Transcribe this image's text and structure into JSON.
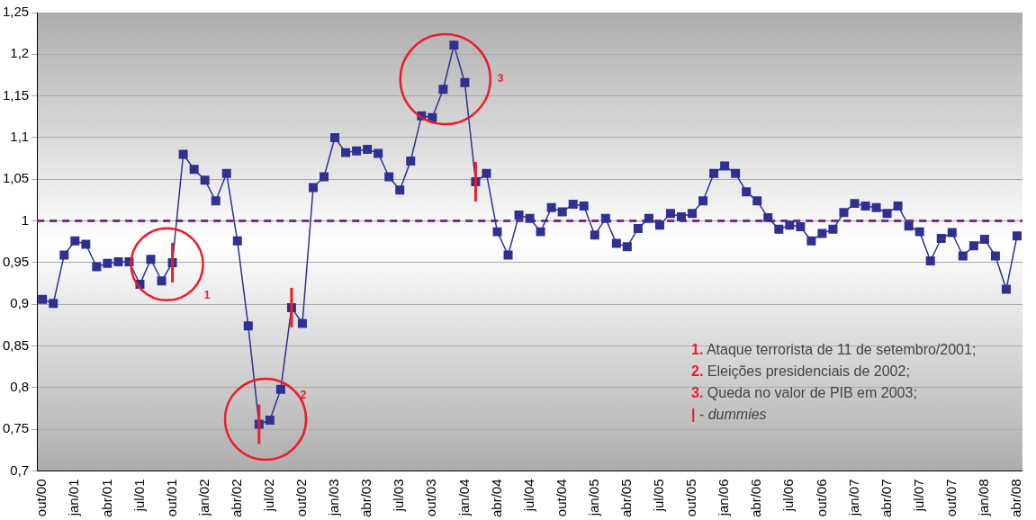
{
  "chart_data": {
    "type": "line",
    "categories": [
      "out/00",
      null,
      null,
      "jan/01",
      null,
      null,
      "abr/01",
      null,
      null,
      "jul/01",
      null,
      null,
      "out/01",
      null,
      null,
      "jan/02",
      null,
      null,
      "abr/02",
      null,
      null,
      "jul/02",
      null,
      null,
      "out/02",
      null,
      null,
      "jan/03",
      null,
      null,
      "abr/03",
      null,
      null,
      "jul/03",
      null,
      null,
      "out/03",
      null,
      null,
      "jan/04",
      null,
      null,
      "abr/04",
      null,
      null,
      "jul/04",
      null,
      null,
      "out/04",
      null,
      null,
      "jan/05",
      null,
      null,
      "abr/05",
      null,
      null,
      "jul/05",
      null,
      null,
      "out/05",
      null,
      null,
      "jan/06",
      null,
      null,
      "abr/06",
      null,
      null,
      "jul/06",
      null,
      null,
      "out/06",
      null,
      null,
      "jan/07",
      null,
      null,
      "abr/07",
      null,
      null,
      "jul/07",
      null,
      null,
      "out/07",
      null,
      null,
      "jan/08",
      null,
      null,
      "abr/08"
    ],
    "series": [
      {
        "color": "#2e3192",
        "values": [
          0.906,
          0.901,
          0.959,
          0.976,
          0.972,
          0.945,
          0.949,
          0.951,
          0.951,
          0.924,
          0.954,
          0.928,
          0.95,
          1.08,
          1.062,
          1.049,
          1.024,
          1.057,
          0.976,
          0.874,
          0.756,
          0.761,
          0.798,
          0.896,
          0.877,
          1.04,
          1.053,
          1.1,
          1.082,
          1.084,
          1.086,
          1.081,
          1.053,
          1.037,
          1.072,
          1.126,
          1.124,
          1.158,
          1.211,
          1.166,
          1.047,
          1.057,
          0.987,
          0.959,
          1.007,
          1.003,
          0.987,
          1.016,
          1.011,
          1.02,
          1.018,
          0.983,
          1.003,
          0.973,
          0.969,
          0.991,
          1.003,
          0.995,
          1.009,
          1.005,
          1.009,
          1.024,
          1.057,
          1.066,
          1.057,
          1.035,
          1.024,
          1.004,
          0.99,
          0.995,
          0.993,
          0.976,
          0.985,
          0.99,
          1.01,
          1.021,
          1.018,
          1.016,
          1.009,
          1.018,
          0.994,
          0.987,
          0.952,
          0.979,
          0.986,
          0.958,
          0.97,
          0.978,
          0.958,
          0.918,
          0.982
        ]
      }
    ],
    "ylim": [
      0.7,
      1.25
    ],
    "yticks": [
      {
        "value": 0.7,
        "label": "0,7"
      },
      {
        "value": 0.75,
        "label": "0,75"
      },
      {
        "value": 0.8,
        "label": "0,8"
      },
      {
        "value": 0.85,
        "label": "0,85"
      },
      {
        "value": 0.9,
        "label": "0,9"
      },
      {
        "value": 0.95,
        "label": "0,95"
      },
      {
        "value": 1,
        "label": "1"
      },
      {
        "value": 1.05,
        "label": "1,05"
      },
      {
        "value": 1.1,
        "label": "1,1"
      },
      {
        "value": 1.15,
        "label": "1,15"
      },
      {
        "value": 1.2,
        "label": "1,2"
      },
      {
        "value": 1.25,
        "label": "1,25"
      }
    ],
    "ref_lines": [
      {
        "axis": "y",
        "value": 1,
        "color": "#7b2a8e",
        "line_style": "dashed"
      }
    ],
    "annotations": [
      "1",
      "2",
      "3",
      "1. Ataque terrorista de 11 de setembro/2001;",
      "2. Eleições presidenciais de 2002;",
      "3. Queda no valor de PIB em 2003;",
      "| - dummies"
    ],
    "grid": "y",
    "legend": false,
    "marker": "square",
    "line_style": "solid"
  }
}
